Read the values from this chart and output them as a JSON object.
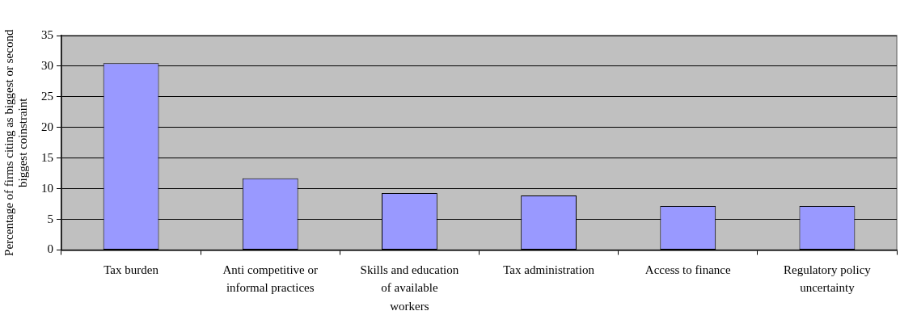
{
  "chart_data": {
    "type": "bar",
    "ylabel": "Percentage of firms citing as biggest or second biggest coinstraint",
    "categories": [
      "Tax burden",
      "Anti competitive or informal practices",
      "Skills and education of available workers",
      "Tax administration",
      "Access to finance",
      "Regulatory policy uncertainty"
    ],
    "values": [
      30.5,
      11.7,
      9.3,
      8.9,
      7.2,
      7.2
    ],
    "color": "#9999ff",
    "ylim": [
      0,
      35
    ],
    "yticks": [
      0,
      5,
      10,
      15,
      20,
      25,
      30,
      35
    ],
    "grid": "y",
    "legend": false
  }
}
